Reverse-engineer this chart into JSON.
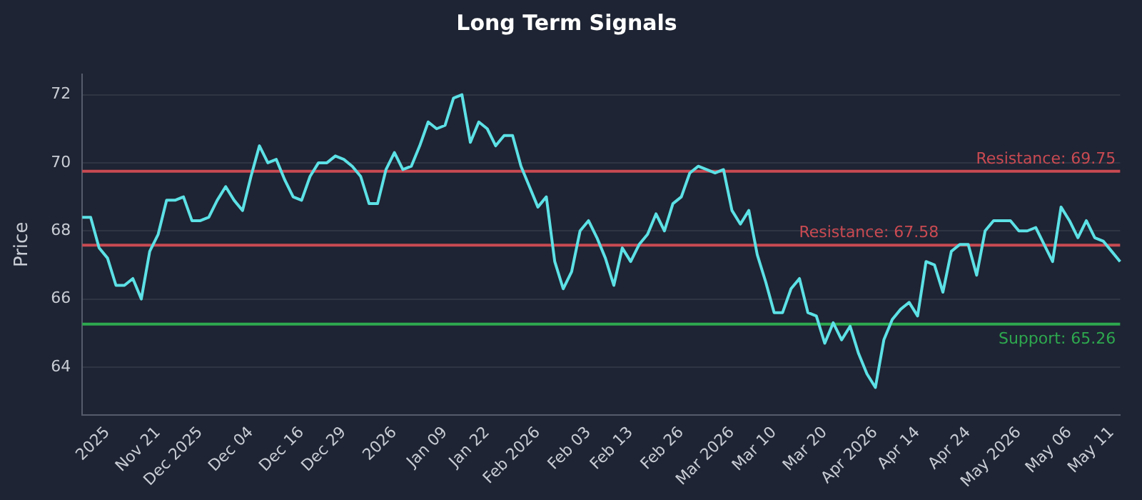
{
  "chart_data": {
    "type": "line",
    "title": "Long Term Signals",
    "ylabel": "Price",
    "categories": [
      null,
      null,
      null,
      "2025",
      null,
      null,
      null,
      null,
      null,
      "Nov 21",
      null,
      null,
      null,
      null,
      "Dec 2025",
      null,
      null,
      null,
      null,
      null,
      "Dec 04",
      null,
      null,
      null,
      null,
      null,
      "Dec 16",
      null,
      null,
      null,
      null,
      "Dec 29",
      null,
      null,
      null,
      null,
      null,
      "2026",
      null,
      null,
      null,
      null,
      null,
      "Jan 09",
      null,
      null,
      null,
      null,
      "Jan 22",
      null,
      null,
      null,
      null,
      null,
      "Feb 2026",
      null,
      null,
      null,
      null,
      null,
      "Feb 03",
      null,
      null,
      null,
      null,
      "Feb 13",
      null,
      null,
      null,
      null,
      null,
      "Feb 26",
      null,
      null,
      null,
      null,
      null,
      "Mar 2026",
      null,
      null,
      null,
      null,
      "Mar 10",
      null,
      null,
      null,
      null,
      null,
      "Mar 20",
      null,
      null,
      null,
      null,
      null,
      "Apr 2026",
      null,
      null,
      null,
      null,
      "Apr 14",
      null,
      null,
      null,
      null,
      null,
      "Apr 24",
      null,
      null,
      null,
      null,
      null,
      "May 2026",
      null,
      null,
      null,
      null,
      null,
      "May 06",
      null,
      null,
      null,
      null,
      "May 11",
      null
    ],
    "series": [
      {
        "color": "#5ce1e6",
        "values": [
          68.4,
          68.4,
          67.5,
          67.2,
          66.4,
          66.4,
          66.6,
          66.0,
          67.4,
          67.9,
          68.9,
          68.9,
          69.0,
          68.3,
          68.3,
          68.4,
          68.9,
          69.3,
          68.9,
          68.6,
          69.6,
          70.5,
          70.0,
          70.1,
          69.5,
          69.0,
          68.9,
          69.6,
          70.0,
          70.0,
          70.2,
          70.1,
          69.9,
          69.6,
          68.8,
          68.8,
          69.8,
          70.3,
          69.8,
          69.9,
          70.5,
          71.2,
          71.0,
          71.1,
          71.9,
          72.0,
          70.6,
          71.2,
          71.0,
          70.5,
          70.8,
          70.8,
          69.9,
          69.3,
          68.7,
          69.0,
          67.1,
          66.3,
          66.8,
          68.0,
          68.3,
          67.8,
          67.2,
          66.4,
          67.5,
          67.1,
          67.6,
          67.9,
          68.5,
          68.0,
          68.8,
          69.0,
          69.7,
          69.9,
          69.8,
          69.7,
          69.8,
          68.6,
          68.2,
          68.6,
          67.3,
          66.5,
          65.6,
          65.6,
          66.3,
          66.6,
          65.6,
          65.5,
          64.7,
          65.3,
          64.8,
          65.2,
          64.4,
          63.8,
          63.4,
          64.8,
          65.4,
          65.7,
          65.9,
          65.5,
          67.1,
          67.0,
          66.2,
          67.4,
          67.6,
          67.6,
          66.7,
          68.0,
          68.3,
          68.3,
          68.3,
          68.0,
          68.0,
          68.1,
          67.6,
          67.1,
          68.7,
          68.3,
          67.8,
          68.3,
          67.8,
          67.7,
          67.4,
          67.1
        ]
      }
    ],
    "ylim": [
      62.6,
      72.6
    ],
    "yticks": [
      64,
      66,
      68,
      70,
      72
    ],
    "grid": "y",
    "legend": false,
    "marker": "none",
    "line_style": "solid",
    "ref_lines": [
      {
        "axis": "y",
        "value": 69.75,
        "label": "Resistance: 69.75",
        "color": "#c94a52"
      },
      {
        "axis": "y",
        "value": 67.58,
        "label": "Resistance: 67.58",
        "color": "#c94a52"
      },
      {
        "axis": "y",
        "value": 65.26,
        "label": "Support: 65.26",
        "color": "#2ea84f"
      }
    ]
  }
}
